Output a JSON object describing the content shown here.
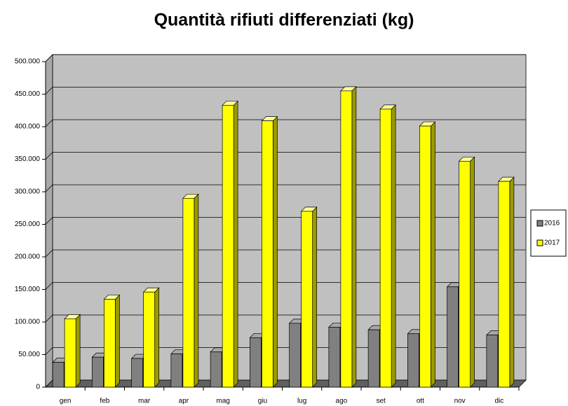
{
  "chart_data": {
    "type": "bar3d",
    "title": "Quantità rifiuti differenziati (kg)",
    "categories": [
      "gen",
      "feb",
      "mar",
      "apr",
      "mag",
      "giu",
      "lug",
      "ago",
      "set",
      "ott",
      "nov",
      "dic"
    ],
    "series": [
      {
        "name": "2016",
        "color": "#808080",
        "values": [
          38000,
          46000,
          44000,
          51000,
          54000,
          76000,
          98000,
          92000,
          88000,
          82000,
          154000,
          80000
        ]
      },
      {
        "name": "2017",
        "color": "#ffff00",
        "values": [
          105000,
          135000,
          146000,
          290000,
          433000,
          409000,
          270000,
          455000,
          427000,
          401000,
          347000,
          316000
        ]
      }
    ],
    "ylim": [
      0,
      500000
    ],
    "yticks": [
      0,
      {
        "value": 50000,
        "label": "50.000"
      },
      {
        "value": 100000,
        "label": "100.000"
      },
      {
        "value": 150000,
        "label": "150.000"
      },
      {
        "value": 200000,
        "label": "200.000"
      },
      {
        "value": 250000,
        "label": "250.000"
      },
      {
        "value": 300000,
        "label": "300.000"
      },
      {
        "value": 350000,
        "label": "350.000"
      },
      {
        "value": 400000,
        "label": "400.000"
      },
      {
        "value": 450000,
        "label": "450.000"
      },
      {
        "value": 500000,
        "label": "500.000"
      }
    ],
    "grid": true,
    "legend": "right"
  }
}
